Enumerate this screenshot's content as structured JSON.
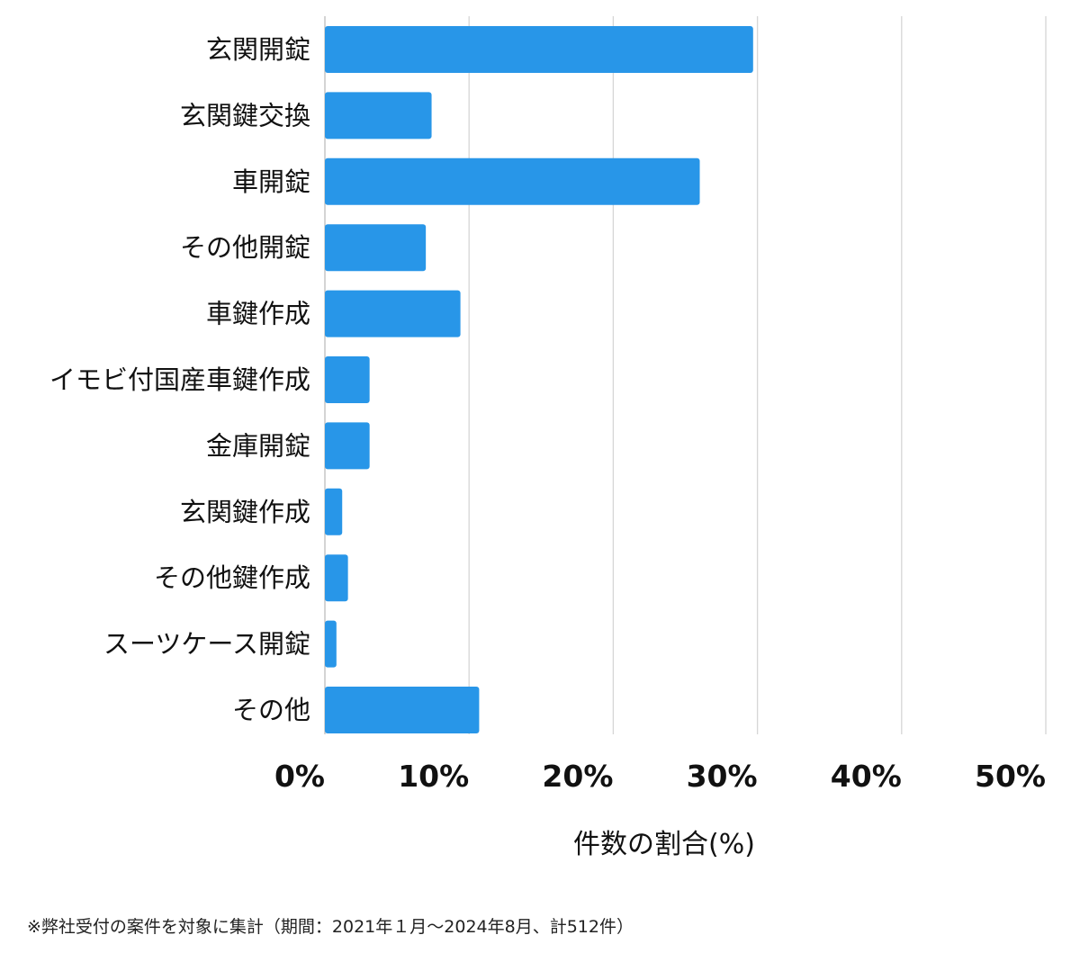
{
  "chart_data": {
    "type": "bar",
    "orientation": "horizontal",
    "categories": [
      "玄関開錠",
      "玄関鍵交換",
      "車開錠",
      "その他開錠",
      "車鍵作成",
      "イモビ付国産車鍵作成",
      "金庫開錠",
      "玄関鍵作成",
      "その他鍵作成",
      "スーツケース開錠",
      "その他"
    ],
    "values": [
      29.7,
      7.4,
      26.0,
      7.0,
      9.4,
      3.1,
      3.1,
      1.2,
      1.6,
      0.8,
      10.7
    ],
    "xlim": [
      0,
      50
    ],
    "xticks": [
      0,
      10,
      20,
      30,
      40,
      50
    ],
    "xtick_labels": [
      "0%",
      "10%",
      "20%",
      "30%",
      "40%",
      "50%"
    ],
    "xlabel": "件数の割合(%)",
    "grid": "vertical",
    "bar_color": "#2896e8",
    "grid_color": "#d6d6d6"
  },
  "footnote": "※弊社受付の案件を対象に集計（期間：2021年１月〜2024年8月、計512件）"
}
